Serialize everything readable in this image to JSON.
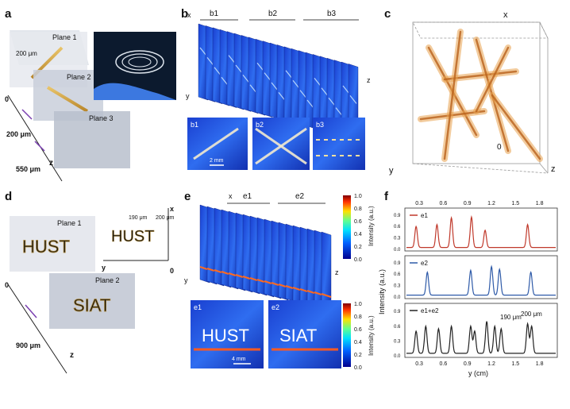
{
  "panels": {
    "a": {
      "label": "a",
      "planes": [
        "Plane 1",
        "Plane 2",
        "Plane 3"
      ],
      "scale_label": "200 μm",
      "depth_labels": [
        "0",
        "200 μm",
        "550 μm"
      ],
      "axis": "z"
    },
    "b": {
      "label": "b",
      "groups": [
        "b1",
        "b2",
        "b3"
      ],
      "axes": {
        "x": "x",
        "y": "y",
        "z": "z"
      },
      "insets": [
        "b1",
        "b2",
        "b3"
      ],
      "scale_label": "2 mm"
    },
    "c": {
      "label": "c",
      "axes": {
        "x": "x",
        "y": "y",
        "z": "z",
        "origin": "0"
      }
    },
    "d": {
      "label": "d",
      "planes": [
        "Plane 1",
        "Plane 2"
      ],
      "words": [
        "HUST",
        "SIAT"
      ],
      "gap_labels": [
        "190 μm",
        "200 μm"
      ],
      "depth_labels": [
        "0",
        "900 μm"
      ],
      "axes": {
        "x": "x",
        "y": "y",
        "z": "z",
        "origin": "0"
      }
    },
    "e": {
      "label": "e",
      "groups": [
        "e1",
        "e2"
      ],
      "axes": {
        "x": "x",
        "y": "y",
        "z": "z"
      },
      "insets": [
        "e1",
        "e2"
      ],
      "scale_label": "4 mm",
      "colorbar": {
        "ticks": [
          "1.0",
          "0.8",
          "0.6",
          "0.4",
          "0.2",
          "0.0"
        ],
        "label": "Intensity (a.u.)"
      }
    },
    "f": {
      "label": "f",
      "annotations": [
        "190 μm",
        "200 μm"
      ]
    }
  },
  "chart_data": {
    "type": "line",
    "xlabel": "y (cm)",
    "ylabel": "Intensity (a.u.)",
    "xlim": [
      0.1,
      2.0
    ],
    "x_ticks": [
      "0.3",
      "0.6",
      "0.9",
      "1.2",
      "1.5",
      "1.8"
    ],
    "y_ticks": [
      "0.0",
      "0.3",
      "0.6",
      "0.9"
    ],
    "ylim": [
      0,
      1.0
    ],
    "grid": false,
    "series": [
      {
        "name": "e1",
        "color": "#c0392b",
        "peaks": [
          [
            0.24,
            0.55
          ],
          [
            0.5,
            0.6
          ],
          [
            0.68,
            0.78
          ],
          [
            0.93,
            0.8
          ],
          [
            1.1,
            0.45
          ],
          [
            1.63,
            0.6
          ]
        ]
      },
      {
        "name": "e2",
        "color": "#2e5aa8",
        "peaks": [
          [
            0.38,
            0.6
          ],
          [
            0.92,
            0.65
          ],
          [
            1.18,
            0.75
          ],
          [
            1.28,
            0.68
          ],
          [
            1.67,
            0.6
          ]
        ]
      },
      {
        "name": "e1+e2",
        "color": "#222222",
        "peaks": [
          [
            0.24,
            0.45
          ],
          [
            0.36,
            0.55
          ],
          [
            0.52,
            0.5
          ],
          [
            0.68,
            0.55
          ],
          [
            0.92,
            0.55
          ],
          [
            0.97,
            0.45
          ],
          [
            1.12,
            0.65
          ],
          [
            1.22,
            0.55
          ],
          [
            1.3,
            0.5
          ],
          [
            1.63,
            0.6
          ],
          [
            1.68,
            0.55
          ]
        ]
      }
    ]
  }
}
